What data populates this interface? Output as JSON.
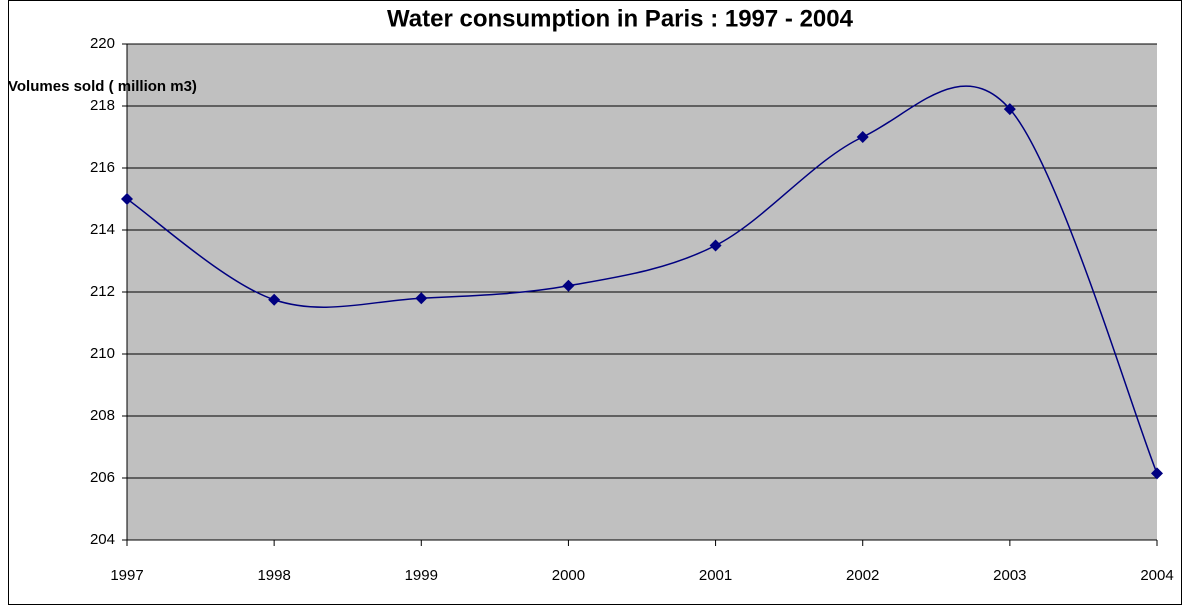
{
  "chart_data": {
    "type": "line",
    "title": "Water consumption in Paris : 1997 - 2004",
    "y_label": "Volumes sold ( million m3)",
    "x": [
      1997,
      1998,
      1999,
      2000,
      2001,
      2002,
      2003,
      2004
    ],
    "xlim": [
      1997,
      2004
    ],
    "xticks": [
      1997,
      1998,
      1999,
      2000,
      2001,
      2002,
      2003,
      2004
    ],
    "ylim": [
      204,
      220
    ],
    "yticks": [
      204,
      206,
      208,
      210,
      212,
      214,
      216,
      218,
      220
    ],
    "grid": true,
    "smooth": true,
    "plot_background": "#c0c0c0",
    "series": [
      {
        "name": "Volumes sold",
        "color": "#000080",
        "values": [
          215,
          211.75,
          211.8,
          212.2,
          213.5,
          217,
          217.9,
          206.15
        ]
      }
    ]
  }
}
